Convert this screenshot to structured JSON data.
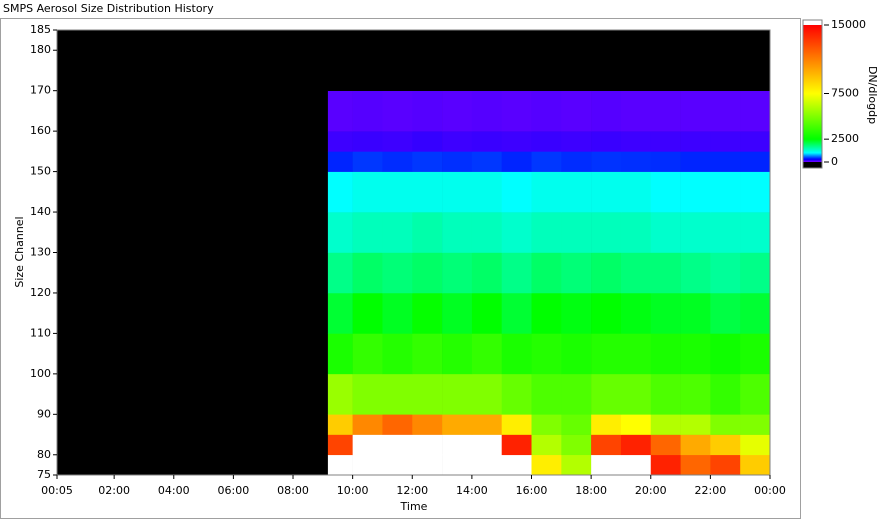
{
  "chart_data": {
    "type": "heatmap",
    "title": "SMPS Aerosol Size Distribution History",
    "xlabel": "Time",
    "ylabel": "Size Channel",
    "xlim": [
      0.083,
      24
    ],
    "xticks": [
      {
        "value": 0.083,
        "label": "00:05"
      },
      {
        "value": 2,
        "label": "02:00"
      },
      {
        "value": 4,
        "label": "04:00"
      },
      {
        "value": 6,
        "label": "06:00"
      },
      {
        "value": 8,
        "label": "08:00"
      },
      {
        "value": 10,
        "label": "10:00"
      },
      {
        "value": 12,
        "label": "12:00"
      },
      {
        "value": 14,
        "label": "14:00"
      },
      {
        "value": 16,
        "label": "16:00"
      },
      {
        "value": 18,
        "label": "18:00"
      },
      {
        "value": 20,
        "label": "20:00"
      },
      {
        "value": 22,
        "label": "22:00"
      },
      {
        "value": 24,
        "label": "00:00"
      }
    ],
    "ylim": [
      75,
      185
    ],
    "yticks": [
      75,
      80,
      90,
      100,
      110,
      120,
      130,
      140,
      150,
      160,
      170,
      180,
      185
    ],
    "x_bins": [
      0.083,
      9.17,
      10,
      11,
      12,
      13,
      14,
      15,
      16,
      17,
      18,
      19,
      20,
      21,
      22,
      23,
      24
    ],
    "y_bins": [
      75,
      80,
      85,
      90,
      100,
      110,
      120,
      130,
      140,
      150,
      155,
      160,
      170,
      185
    ],
    "z": [
      [
        null,
        16000,
        18000,
        20000,
        20000,
        20000,
        20000,
        17000,
        8000,
        6000,
        16000,
        18000,
        14000,
        12000,
        13000,
        9000
      ],
      [
        null,
        13000,
        16000,
        16000,
        17000,
        16000,
        16000,
        14000,
        6000,
        5000,
        13000,
        14000,
        12000,
        10000,
        9000,
        7000
      ],
      [
        null,
        9000,
        11000,
        12000,
        11000,
        10000,
        10000,
        8000,
        5000,
        4500,
        8000,
        7500,
        6000,
        6000,
        5000,
        5000
      ],
      [
        null,
        5500,
        5000,
        5000,
        5000,
        5000,
        5000,
        4500,
        4000,
        4000,
        4500,
        4500,
        4000,
        4000,
        3500,
        4000
      ],
      [
        null,
        3000,
        3500,
        3200,
        3500,
        3200,
        3500,
        3000,
        3200,
        3000,
        3200,
        3200,
        3000,
        3000,
        2800,
        3000
      ],
      [
        null,
        2200,
        2500,
        2300,
        2600,
        2300,
        2500,
        2200,
        2500,
        2400,
        2500,
        2400,
        2300,
        2300,
        2100,
        2200
      ],
      [
        null,
        1700,
        1900,
        1800,
        1900,
        1800,
        1900,
        1700,
        1900,
        1800,
        1900,
        1800,
        1800,
        1700,
        1600,
        1700
      ],
      [
        null,
        1300,
        1400,
        1400,
        1500,
        1400,
        1400,
        1300,
        1400,
        1400,
        1400,
        1400,
        1300,
        1300,
        1300,
        1300
      ],
      [
        null,
        1000,
        1100,
        1100,
        1100,
        1100,
        1100,
        1000,
        1100,
        1100,
        1100,
        1100,
        1000,
        1000,
        1000,
        1000
      ],
      [
        null,
        400,
        450,
        420,
        450,
        430,
        450,
        400,
        450,
        420,
        440,
        430,
        420,
        400,
        400,
        400
      ],
      [
        null,
        150,
        160,
        150,
        170,
        150,
        160,
        150,
        160,
        150,
        160,
        150,
        150,
        150,
        150,
        150
      ],
      [
        null,
        80,
        90,
        80,
        90,
        80,
        90,
        80,
        90,
        80,
        90,
        80,
        80,
        80,
        80,
        80
      ],
      [
        null,
        0,
        0,
        0,
        0,
        0,
        0,
        0,
        0,
        0,
        0,
        0,
        0,
        0,
        0,
        0
      ]
    ],
    "colorbar": {
      "label": "DN/dlogdp",
      "lim": [
        0,
        15000
      ],
      "ticks": [
        0,
        2500,
        7500,
        15000
      ],
      "stops": [
        [
          0,
          "#7a00ff"
        ],
        [
          300,
          "#0000ff"
        ],
        [
          1000,
          "#00ffff"
        ],
        [
          2500,
          "#00ff00"
        ],
        [
          7500,
          "#ffff00"
        ],
        [
          15000,
          "#ff0000"
        ]
      ],
      "below_color": "#000000",
      "above_color": "#ffffff"
    }
  }
}
